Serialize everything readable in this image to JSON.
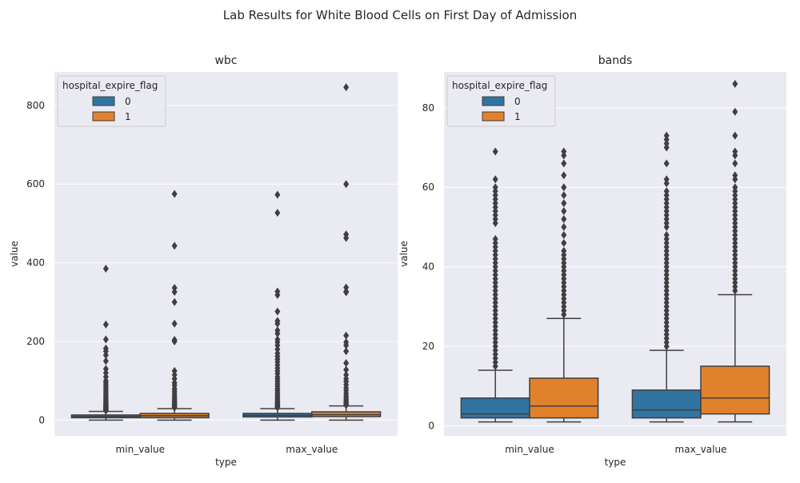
{
  "figure": {
    "title": "Lab Results for White Blood Cells on First Day of Admission"
  },
  "colors": {
    "series_0": "#3274a1",
    "series_1": "#e1812c",
    "axes_bg": "#eaeaf2",
    "grid": "#ffffff",
    "line": "#3f3f3f"
  },
  "chart_data": [
    {
      "type": "box",
      "title": "wbc",
      "xlabel": "type",
      "ylabel": "value",
      "categories": [
        "min_value",
        "max_value"
      ],
      "ylim": [
        -40,
        885
      ],
      "yticks": [
        0,
        200,
        400,
        600,
        800
      ],
      "grid": true,
      "legend": {
        "title": "hospital_expire_flag",
        "placement": "top-left",
        "entries": [
          "0",
          "1"
        ]
      },
      "series": [
        {
          "name": "0",
          "boxes": [
            {
              "category": "min_value",
              "whisker_low": 0,
              "q1": 6,
              "median": 9,
              "q3": 13,
              "whisker_high": 22,
              "outliers": [
                385,
                243,
                205,
                182,
                175,
                165,
                150,
                130,
                120,
                110,
                100,
                95,
                90,
                85,
                80,
                75,
                70,
                65,
                60,
                56,
                52,
                48,
                45,
                42,
                39,
                36,
                34,
                32,
                30,
                28,
                26,
                24
              ]
            },
            {
              "category": "max_value",
              "whisker_low": 0,
              "q1": 8,
              "median": 12,
              "q3": 17,
              "whisker_high": 29,
              "outliers": [
                573,
                527,
                327,
                318,
                276,
                252,
                245,
                228,
                220,
                205,
                198,
                190,
                180,
                170,
                162,
                155,
                148,
                140,
                132,
                125,
                118,
                110,
                104,
                98,
                92,
                86,
                80,
                75,
                70,
                65,
                60,
                56,
                52,
                48,
                45,
                42,
                39,
                36,
                34,
                32
              ]
            }
          ]
        },
        {
          "name": "1",
          "boxes": [
            {
              "category": "min_value",
              "whisker_low": 0,
              "q1": 6,
              "median": 11,
              "q3": 17,
              "whisker_high": 29,
              "outliers": [
                575,
                443,
                336,
                326,
                300,
                245,
                204,
                200,
                125,
                115,
                105,
                95,
                88,
                80,
                74,
                68,
                62,
                57,
                52,
                48,
                44,
                41,
                38,
                35,
                32
              ]
            },
            {
              "category": "max_value",
              "whisker_low": 0,
              "q1": 9,
              "median": 14,
              "q3": 21,
              "whisker_high": 36,
              "outliers": [
                846,
                600,
                472,
                463,
                337,
                327,
                325,
                215,
                198,
                190,
                175,
                145,
                128,
                115,
                105,
                98,
                90,
                82,
                75,
                68,
                62,
                57,
                52,
                48,
                44,
                41,
                38
              ]
            }
          ]
        }
      ]
    },
    {
      "type": "box",
      "title": "bands",
      "xlabel": "type",
      "ylabel": "value",
      "categories": [
        "min_value",
        "max_value"
      ],
      "ylim": [
        -2.5,
        89
      ],
      "yticks": [
        0,
        20,
        40,
        60,
        80
      ],
      "grid": true,
      "legend": {
        "title": "hospital_expire_flag",
        "placement": "top-left",
        "entries": [
          "0",
          "1"
        ]
      },
      "series": [
        {
          "name": "0",
          "boxes": [
            {
              "category": "min_value",
              "whisker_low": 1,
              "q1": 2,
              "median": 3,
              "q3": 7,
              "whisker_high": 14,
              "outliers": [
                69,
                62,
                60,
                59,
                58,
                57,
                56,
                55,
                54,
                53,
                52,
                51,
                47,
                46,
                45,
                44,
                43,
                42,
                41,
                40,
                39,
                38,
                37,
                36,
                35,
                34,
                33,
                32,
                31,
                30,
                29,
                28,
                27,
                26,
                25,
                24,
                23,
                22,
                21,
                20,
                19,
                18,
                17,
                16,
                15
              ]
            },
            {
              "category": "max_value",
              "whisker_low": 1,
              "q1": 2,
              "median": 4,
              "q3": 9,
              "whisker_high": 19,
              "outliers": [
                73,
                72,
                71,
                70,
                66,
                62,
                61,
                59,
                58,
                57,
                56,
                55,
                54,
                53,
                52,
                51,
                50,
                48,
                47,
                46,
                45,
                44,
                43,
                42,
                41,
                40,
                39,
                38,
                37,
                36,
                35,
                34,
                33,
                32,
                31,
                30,
                29,
                28,
                27,
                26,
                25,
                24,
                23,
                22,
                21,
                20
              ]
            }
          ]
        },
        {
          "name": "1",
          "boxes": [
            {
              "category": "min_value",
              "whisker_low": 1,
              "q1": 2,
              "median": 5,
              "q3": 12,
              "whisker_high": 27,
              "outliers": [
                69,
                68,
                66,
                63,
                60,
                58,
                56,
                54,
                52,
                50,
                48,
                46,
                44,
                43,
                42,
                41,
                40,
                39,
                38,
                37,
                36,
                35,
                34,
                33,
                32,
                31,
                30,
                29,
                28
              ]
            },
            {
              "category": "max_value",
              "whisker_low": 1,
              "q1": 3,
              "median": 7,
              "q3": 15,
              "whisker_high": 33,
              "outliers": [
                86,
                79,
                73,
                69,
                68,
                66,
                63,
                62,
                60,
                59,
                58,
                57,
                56,
                55,
                54,
                53,
                52,
                51,
                50,
                49,
                48,
                47,
                46,
                45,
                44,
                43,
                42,
                41,
                40,
                39,
                38,
                37,
                36,
                35,
                34
              ]
            }
          ]
        }
      ]
    }
  ]
}
